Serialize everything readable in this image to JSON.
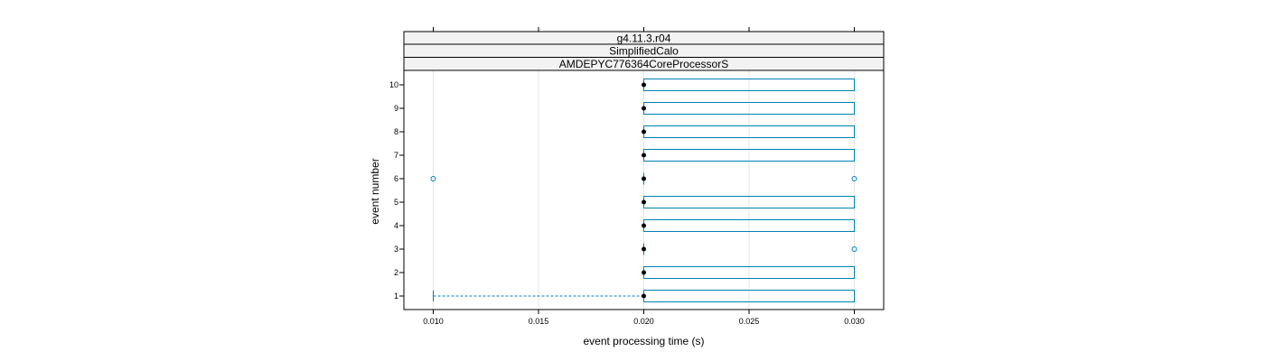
{
  "chart_data": {
    "type": "boxplot",
    "orientation": "horizontal",
    "strips": [
      "g4.11.3.r04",
      "SimplifiedCalo",
      "AMDEPYC776364CoreProcessorS"
    ],
    "xlabel": "event processing time (s)",
    "ylabel": "event number",
    "xlim": [
      0.0085,
      0.0315
    ],
    "x_ticks": [
      0.01,
      0.015,
      0.02,
      0.025,
      0.03
    ],
    "x_tick_labels": [
      "0.010",
      "0.015",
      "0.020",
      "0.025",
      "0.030"
    ],
    "grid": true,
    "colors": {
      "box": "#0080b5",
      "median": "#000000",
      "grid": "#e6e6e6",
      "strip": "#f2f2f2"
    },
    "categories": [
      "1",
      "2",
      "3",
      "4",
      "5",
      "6",
      "7",
      "8",
      "9",
      "10"
    ],
    "boxes": [
      {
        "event": "1",
        "whisker_low": 0.01,
        "q1": 0.02,
        "median": 0.02,
        "q3": 0.03,
        "whisker_high": 0.03,
        "outliers": []
      },
      {
        "event": "2",
        "whisker_low": 0.02,
        "q1": 0.02,
        "median": 0.02,
        "q3": 0.03,
        "whisker_high": 0.03,
        "outliers": []
      },
      {
        "event": "3",
        "whisker_low": 0.02,
        "q1": 0.02,
        "median": 0.02,
        "q3": 0.02,
        "whisker_high": 0.02,
        "outliers": [
          0.03
        ]
      },
      {
        "event": "4",
        "whisker_low": 0.02,
        "q1": 0.02,
        "median": 0.02,
        "q3": 0.03,
        "whisker_high": 0.03,
        "outliers": []
      },
      {
        "event": "5",
        "whisker_low": 0.02,
        "q1": 0.02,
        "median": 0.02,
        "q3": 0.03,
        "whisker_high": 0.03,
        "outliers": []
      },
      {
        "event": "6",
        "whisker_low": 0.02,
        "q1": 0.02,
        "median": 0.02,
        "q3": 0.02,
        "whisker_high": 0.02,
        "outliers": [
          0.01,
          0.03
        ]
      },
      {
        "event": "7",
        "whisker_low": 0.02,
        "q1": 0.02,
        "median": 0.02,
        "q3": 0.03,
        "whisker_high": 0.03,
        "outliers": []
      },
      {
        "event": "8",
        "whisker_low": 0.02,
        "q1": 0.02,
        "median": 0.02,
        "q3": 0.03,
        "whisker_high": 0.03,
        "outliers": []
      },
      {
        "event": "9",
        "whisker_low": 0.02,
        "q1": 0.02,
        "median": 0.02,
        "q3": 0.03,
        "whisker_high": 0.03,
        "outliers": []
      },
      {
        "event": "10",
        "whisker_low": 0.02,
        "q1": 0.02,
        "median": 0.02,
        "q3": 0.03,
        "whisker_high": 0.03,
        "outliers": []
      }
    ]
  }
}
